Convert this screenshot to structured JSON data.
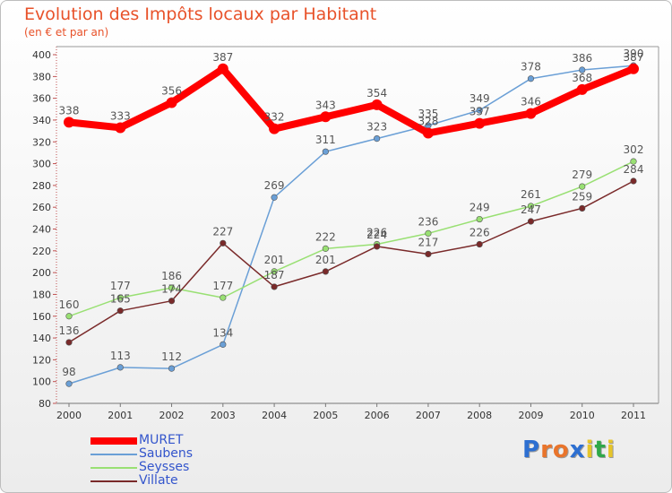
{
  "header": {
    "title": "Evolution des Impôts locaux par Habitant",
    "subtitle": "(en € et par an)"
  },
  "brand": {
    "text": "Proxiti",
    "letter_colors": [
      "#2d6fd1",
      "#e9742b",
      "#e9742b",
      "#2d6fd1",
      "#e6c52a",
      "#2fa84a",
      "#e6c52a"
    ]
  },
  "chart_data": {
    "type": "line",
    "title": "Evolution des Impôts locaux par Habitant",
    "subtitle": "(en € et par an)",
    "x": [
      "2000",
      "2001",
      "2002",
      "2003",
      "2004",
      "2005",
      "2006",
      "2007",
      "2008",
      "2009",
      "2010",
      "2011"
    ],
    "yticks": [
      80,
      100,
      120,
      140,
      160,
      180,
      200,
      220,
      240,
      260,
      280,
      300,
      320,
      340,
      360,
      380,
      400
    ],
    "ylim": [
      80,
      400
    ],
    "grid": false,
    "legend_position": "bottom-left",
    "series": [
      {
        "name": "MURET",
        "color": "#ff0000",
        "values": [
          338,
          333,
          356,
          387,
          332,
          343,
          354,
          328,
          337,
          346,
          368,
          387
        ]
      },
      {
        "name": "Saubens",
        "color": "#6a9fd6",
        "values": [
          98,
          113,
          112,
          134,
          269,
          311,
          323,
          335,
          349,
          378,
          386,
          390
        ]
      },
      {
        "name": "Seysses",
        "color": "#99e073",
        "values": [
          160,
          177,
          186,
          177,
          201,
          222,
          226,
          236,
          249,
          261,
          279,
          302
        ]
      },
      {
        "name": "Villate",
        "color": "#7a2a2a",
        "values": [
          136,
          165,
          174,
          227,
          187,
          201,
          224,
          217,
          226,
          247,
          259,
          284
        ]
      }
    ]
  }
}
